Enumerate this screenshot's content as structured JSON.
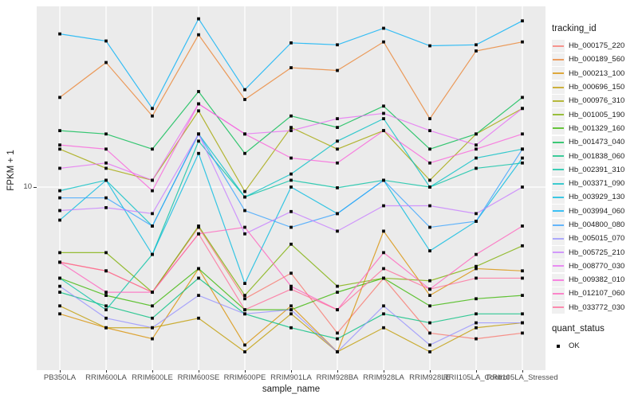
{
  "chart_data": {
    "type": "line",
    "title": "",
    "xlabel": "sample_name",
    "ylabel": "FPKM + 1",
    "y_scale": "log10",
    "y_tick_label": "10",
    "y_tick_value": 10,
    "grid": "major-white-on-gray",
    "legend_position": "right",
    "panel_bg": "#EBEBEB",
    "gridline_color": "#FFFFFF",
    "point_color": "#0a0a0a",
    "point_shape": "square",
    "categories": [
      "PB350LA",
      "RRIM600LA",
      "RRIM600LE",
      "RRIM600SE",
      "RRIM600PE",
      "RRIM901LA",
      "RRIM928BA",
      "RRIM928LA",
      "RRIM928LE",
      "RRII105LA_Control",
      "RRII105LA_Stressed"
    ],
    "series": [
      {
        "name": "Hb_000175_220",
        "color": "#F8766D",
        "values": [
          3.5,
          3.1,
          2.3,
          5.7,
          2.1,
          3.0,
          1.3,
          2.8,
          1.3,
          1.2,
          1.3
        ]
      },
      {
        "name": "Hb_000189_560",
        "color": "#EA8331",
        "values": [
          35,
          57,
          27,
          84,
          34,
          53,
          51,
          76,
          26,
          67,
          76
        ]
      },
      {
        "name": "Hb_000213_100",
        "color": "#D89000",
        "values": [
          1.7,
          1.4,
          1.2,
          3.2,
          1.1,
          1.9,
          1.0,
          5.4,
          2.2,
          3.2,
          3.1
        ]
      },
      {
        "name": "Hb_000696_150",
        "color": "#C09B00",
        "values": [
          1.9,
          1.4,
          1.4,
          1.6,
          1.0,
          1.7,
          1.0,
          1.4,
          1.0,
          1.4,
          1.5
        ]
      },
      {
        "name": "Hb_000976_310",
        "color": "#A3A500",
        "values": [
          17,
          13,
          11,
          29,
          9.4,
          23,
          17,
          22,
          11,
          21,
          30
        ]
      },
      {
        "name": "Hb_001005_190",
        "color": "#7CAE00",
        "values": [
          4.0,
          4.0,
          2.3,
          5.8,
          2.2,
          4.5,
          2.5,
          2.8,
          2.7,
          3.3,
          4.4
        ]
      },
      {
        "name": "Hb_001329_160",
        "color": "#39B600",
        "values": [
          2.8,
          2.2,
          1.9,
          3.2,
          1.8,
          1.8,
          2.3,
          2.8,
          1.9,
          2.1,
          2.2
        ]
      },
      {
        "name": "Hb_001473_040",
        "color": "#00BB4E",
        "values": [
          22,
          21,
          17,
          38,
          16,
          27,
          23,
          31,
          17,
          21,
          35
        ]
      },
      {
        "name": "Hb_001838_060",
        "color": "#00BF7D",
        "values": [
          2.3,
          1.9,
          1.6,
          2.8,
          1.7,
          1.4,
          1.2,
          1.7,
          1.5,
          1.7,
          1.7
        ]
      },
      {
        "name": "Hb_002391_310",
        "color": "#00C1A3",
        "values": [
          2.8,
          1.8,
          3.9,
          19,
          8.7,
          11,
          9.9,
          11,
          10,
          13,
          14
        ]
      },
      {
        "name": "Hb_003371_090",
        "color": "#00BFC4",
        "values": [
          9.5,
          11,
          5.8,
          21,
          8.7,
          12,
          19,
          26,
          10,
          15,
          17
        ]
      },
      {
        "name": "Hb_003929_130",
        "color": "#00BAE0",
        "values": [
          6.3,
          11,
          3.9,
          16,
          2.6,
          10,
          6.9,
          11,
          4.1,
          6.2,
          15
        ]
      },
      {
        "name": "Hb_003994_060",
        "color": "#00B0F6",
        "values": [
          85,
          77,
          30,
          105,
          39,
          75,
          73,
          92,
          72,
          73,
          102
        ]
      },
      {
        "name": "Hb_004800_080",
        "color": "#35A2FF",
        "values": [
          8.6,
          8.6,
          5.8,
          21,
          7.2,
          5.7,
          6.9,
          11,
          5.7,
          6.2,
          17
        ]
      },
      {
        "name": "Hb_005015_070",
        "color": "#9590FF",
        "values": [
          2.5,
          1.6,
          1.4,
          2.2,
          1.7,
          1.8,
          1.0,
          1.9,
          1.1,
          1.5,
          1.5
        ]
      },
      {
        "name": "Hb_005725_210",
        "color": "#C77CFF",
        "values": [
          7.2,
          7.5,
          6.9,
          21,
          5.2,
          7.1,
          5.4,
          7.7,
          7.7,
          6.9,
          10
        ]
      },
      {
        "name": "Hb_008770_030",
        "color": "#E76BF3",
        "values": [
          13,
          14,
          11,
          32,
          21,
          22,
          26,
          28,
          22,
          18,
          30
        ]
      },
      {
        "name": "Hb_009382_010",
        "color": "#FA62DB",
        "values": [
          18,
          17,
          9.5,
          32,
          21,
          15,
          14,
          22,
          14,
          17,
          21
        ]
      },
      {
        "name": "Hb_012107_060",
        "color": "#FF62BC",
        "values": [
          3.5,
          2.3,
          2.3,
          5.2,
          5.7,
          2.5,
          1.8,
          4.0,
          2.4,
          3.9,
          5.8
        ]
      },
      {
        "name": "Hb_033772_030",
        "color": "#FF6A98",
        "values": [
          3.5,
          3.1,
          2.3,
          5.2,
          1.8,
          2.4,
          1.8,
          3.2,
          2.4,
          2.8,
          2.8
        ]
      }
    ],
    "legend": {
      "tracking_title": "tracking_id",
      "quant_title": "quant_status",
      "quant_value": "OK"
    }
  }
}
